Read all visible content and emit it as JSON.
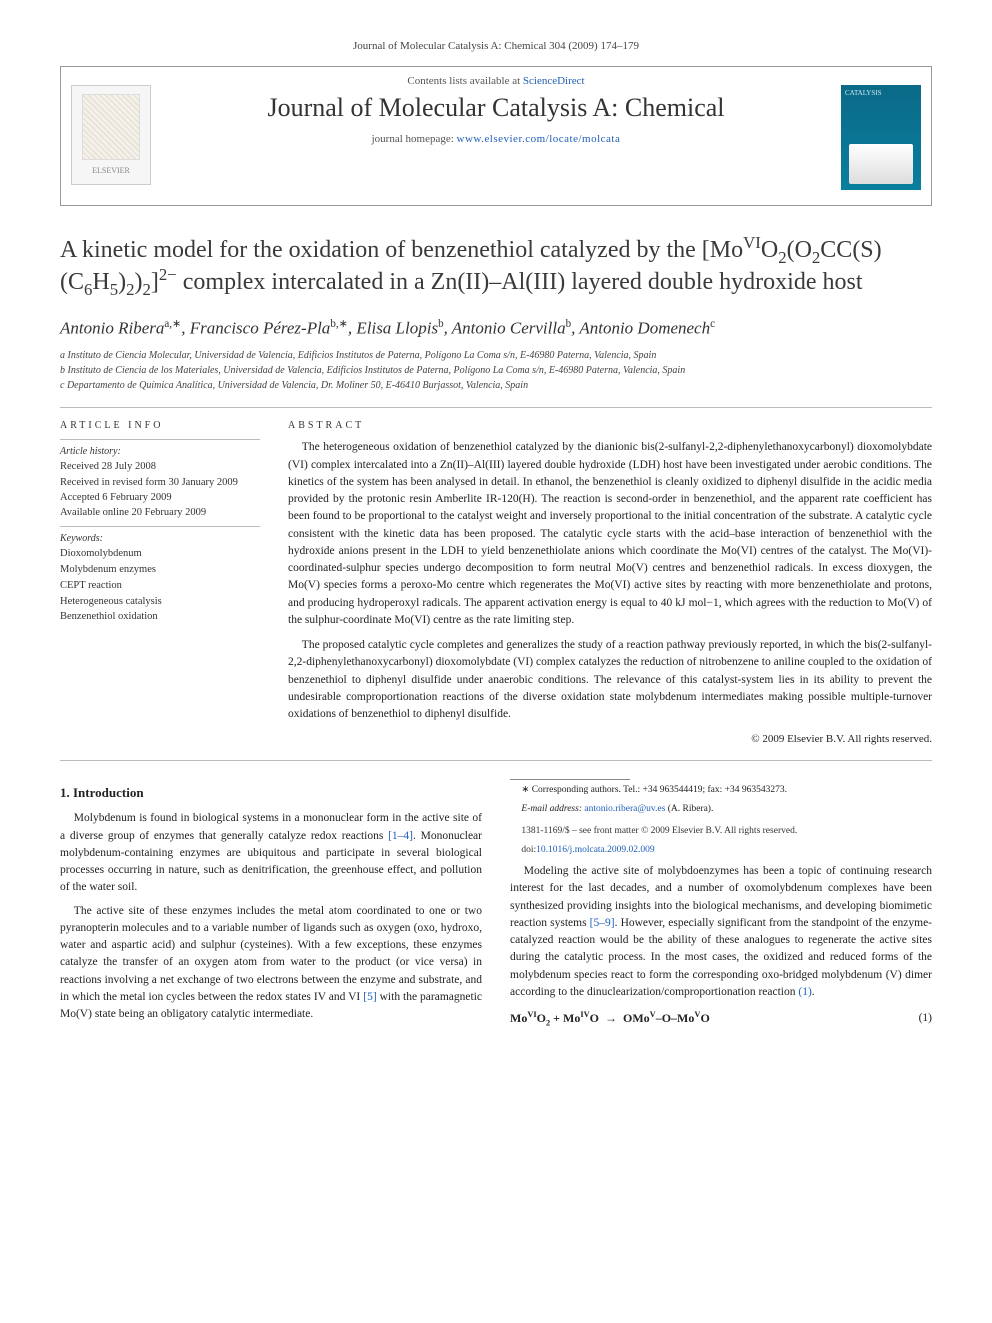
{
  "top_citation": "Journal of Molecular Catalysis A: Chemical 304 (2009) 174–179",
  "header": {
    "contents_prefix": "Contents lists available at ",
    "contents_link": "ScienceDirect",
    "journal_name": "Journal of Molecular Catalysis A: Chemical",
    "homepage_prefix": "journal homepage: ",
    "homepage_url": "www.elsevier.com/locate/molcata",
    "left_logo_label": "ELSEVIER",
    "right_logo_label": "CATALYSIS"
  },
  "title_html": "A kinetic model for the oxidation of benzenethiol catalyzed by the [Mo<sup>VI</sup>O<sub>2</sub>(O<sub>2</sub>CC(S)(C<sub>6</sub>H<sub>5</sub>)<sub>2</sub>)<sub>2</sub>]<sup>2−</sup> complex intercalated in a Zn(II)–Al(III) layered double hydroxide host",
  "authors_html": "Antonio Ribera<span class='sup'>a,∗</span>, Francisco Pérez-Pla<span class='sup'>b,∗</span>, Elisa Llopis<span class='sup'>b</span>, Antonio Cervilla<span class='sup'>b</span>, Antonio Domenech<span class='sup'>c</span>",
  "affiliations": [
    "a Instituto de Ciencia Molecular, Universidad de Valencia, Edificios Institutos de Paterna, Polígono La Coma s/n, E-46980 Paterna, Valencia, Spain",
    "b Instituto de Ciencia de los Materiales, Universidad de Valencia, Edificios Institutos de Paterna, Polígono La Coma s/n, E-46980 Paterna, Valencia, Spain",
    "c Departamento de Química Analítica, Universidad de Valencia, Dr. Moliner 50, E-46410 Burjassot, Valencia, Spain"
  ],
  "article_info": {
    "heading": "article info",
    "history_label": "Article history:",
    "history": [
      "Received 28 July 2008",
      "Received in revised form 30 January 2009",
      "Accepted 6 February 2009",
      "Available online 20 February 2009"
    ],
    "keywords_label": "Keywords:",
    "keywords": [
      "Dioxomolybdenum",
      "Molybdenum enzymes",
      "CEPT reaction",
      "Heterogeneous catalysis",
      "Benzenethiol oxidation"
    ]
  },
  "abstract": {
    "heading": "abstract",
    "paragraphs": [
      "The heterogeneous oxidation of benzenethiol catalyzed by the dianionic bis(2-sulfanyl-2,2-diphenylethanoxycarbonyl) dioxomolybdate (VI) complex intercalated into a Zn(II)–Al(III) layered double hydroxide (LDH) host have been investigated under aerobic conditions. The kinetics of the system has been analysed in detail. In ethanol, the benzenethiol is cleanly oxidized to diphenyl disulfide in the acidic media provided by the protonic resin Amberlite IR-120(H). The reaction is second-order in benzenethiol, and the apparent rate coefficient has been found to be proportional to the catalyst weight and inversely proportional to the initial concentration of the substrate. A catalytic cycle consistent with the kinetic data has been proposed. The catalytic cycle starts with the acid–base interaction of benzenethiol with the hydroxide anions present in the LDH to yield benzenethiolate anions which coordinate the Mo(VI) centres of the catalyst. The Mo(VI)-coordinated-sulphur species undergo decomposition to form neutral Mo(V) centres and benzenethiol radicals. In excess dioxygen, the Mo(V) species forms a peroxo-Mo centre which regenerates the Mo(VI) active sites by reacting with more benzenethiolate and protons, and producing hydroperoxyl radicals. The apparent activation energy is equal to 40 kJ mol−1, which agrees with the reduction to Mo(V) of the sulphur-coordinate Mo(VI) centre as the rate limiting step.",
      "The proposed catalytic cycle completes and generalizes the study of a reaction pathway previously reported, in which the bis(2-sulfanyl-2,2-diphenylethanoxycarbonyl) dioxomolybdate (VI) complex catalyzes the reduction of nitrobenzene to aniline coupled to the oxidation of benzenethiol to diphenyl disulfide under anaerobic conditions. The relevance of this catalyst-system lies in its ability to prevent the undesirable comproportionation reactions of the diverse oxidation state molybdenum intermediates making possible multiple-turnover oxidations of benzenethiol to diphenyl disulfide."
    ],
    "copyright": "© 2009 Elsevier B.V. All rights reserved."
  },
  "body": {
    "section_heading": "1. Introduction",
    "paragraphs_html": [
      "Molybdenum is found in biological systems in a mononuclear form in the active site of a diverse group of enzymes that generally catalyze redox reactions <a href='#'>[1–4]</a>. Mononuclear molybdenum-containing enzymes are ubiquitous and participate in several biological processes occurring in nature, such as denitrification, the greenhouse effect, and pollution of the water soil.",
      "The active site of these enzymes includes the metal atom coordinated to one or two pyranopterin molecules and to a variable number of ligands such as oxygen (oxo, hydroxo, water and aspartic acid) and sulphur (cysteines). With a few exceptions, these enzymes catalyze the transfer of an oxygen atom from water to the product (or vice versa) in reactions involving a net exchange of two electrons between the enzyme and substrate, and in which the metal ion cycles between the redox states IV and VI <a href='#'>[5]</a> with the paramagnetic Mo(V) state being an obligatory catalytic intermediate.",
      "Modeling the active site of molybdoenzymes has been a topic of continuing research interest for the last decades, and a number of oxomolybdenum complexes have been synthesized providing insights into the biological mechanisms, and developing biomimetic reaction systems <a href='#'>[5–9]</a>. However, especially significant from the standpoint of the enzyme-catalyzed reaction would be the ability of these analogues to regenerate the active sites during the catalytic process. In the most cases, the oxidized and reduced forms of the molybdenum species react to form the corresponding oxo-bridged molybdenum (V) dimer according to the dinuclearization/comproportionation reaction <a href='#'>(1)</a>."
    ],
    "equation_html": "Mo<sup>VI</sup>O<sub>2</sub> + Mo<sup>IV</sup>O &nbsp;→&nbsp; OMo<sup>V</sup>–O–Mo<sup>V</sup>O",
    "equation_num": "(1)"
  },
  "footnote": {
    "corr_html": "∗ Corresponding authors. Tel.: +34 963544419; fax: +34 963543273.",
    "email_label": "E-mail address: ",
    "email": "antonio.ribera@uv.es",
    "email_suffix": " (A. Ribera)."
  },
  "footer": {
    "line1": "1381-1169/$ – see front matter © 2009 Elsevier B.V. All rights reserved.",
    "doi_label": "doi:",
    "doi": "10.1016/j.molcata.2009.02.009"
  },
  "colors": {
    "link": "#1f5fb8",
    "rule": "#bbbbbb",
    "text": "#222222",
    "cover_bg": "#0a7f9e"
  }
}
